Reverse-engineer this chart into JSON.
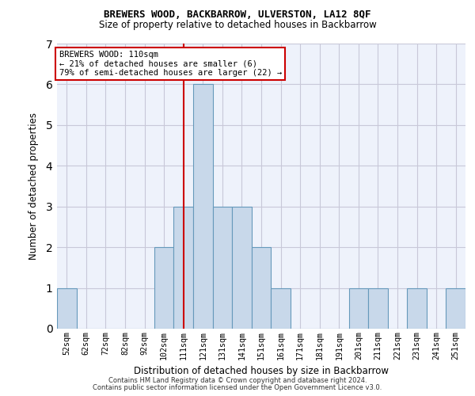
{
  "title1": "BREWERS WOOD, BACKBARROW, ULVERSTON, LA12 8QF",
  "title2": "Size of property relative to detached houses in Backbarrow",
  "xlabel": "Distribution of detached houses by size in Backbarrow",
  "ylabel": "Number of detached properties",
  "footer1": "Contains HM Land Registry data © Crown copyright and database right 2024.",
  "footer2": "Contains public sector information licensed under the Open Government Licence v3.0.",
  "annotation_title": "BREWERS WOOD: 110sqm",
  "annotation_line1": "← 21% of detached houses are smaller (6)",
  "annotation_line2": "79% of semi-detached houses are larger (22) →",
  "categories": [
    "52sqm",
    "62sqm",
    "72sqm",
    "82sqm",
    "92sqm",
    "102sqm",
    "111sqm",
    "121sqm",
    "131sqm",
    "141sqm",
    "151sqm",
    "161sqm",
    "171sqm",
    "181sqm",
    "191sqm",
    "201sqm",
    "211sqm",
    "221sqm",
    "231sqm",
    "241sqm",
    "251sqm"
  ],
  "values": [
    1,
    0,
    0,
    0,
    0,
    2,
    3,
    6,
    3,
    3,
    2,
    1,
    0,
    0,
    0,
    1,
    1,
    0,
    1,
    0,
    1
  ],
  "marker_index": 6,
  "bar_color": "#c8d8ea",
  "bar_edge_color": "#6699bb",
  "marker_color": "#cc0000",
  "grid_color": "#c8c8d8",
  "bg_color": "#eef2fb",
  "ylim": [
    0,
    7
  ],
  "yticks": [
    0,
    1,
    2,
    3,
    4,
    5,
    6,
    7
  ]
}
